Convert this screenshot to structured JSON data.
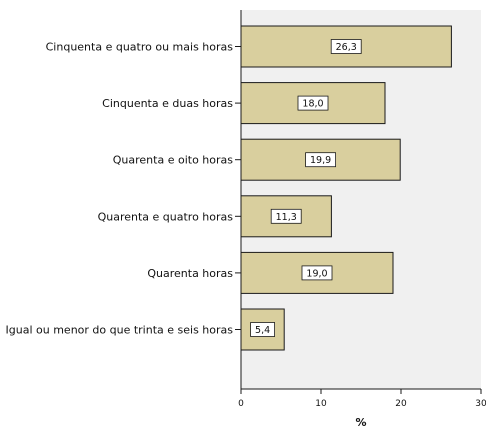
{
  "chart_data": {
    "type": "bar",
    "orientation": "horizontal",
    "categories": [
      "Cinquenta e quatro ou mais horas",
      "Cinquenta e duas horas",
      "Quarenta e oito horas",
      "Quarenta e quatro horas",
      "Quarenta horas",
      "Igual ou menor do que trinta e seis horas"
    ],
    "values": [
      26.3,
      18.0,
      19.9,
      11.3,
      19.0,
      5.4
    ],
    "data_labels": [
      "26,3",
      "18,0",
      "19,9",
      "11,3",
      "19,0",
      "5,4"
    ],
    "xlabel": "%",
    "xlim": [
      0,
      30
    ],
    "xticks": [
      0,
      10,
      20,
      30
    ],
    "xtick_labels": [
      "0",
      "10",
      "20",
      "30"
    ],
    "grid": false,
    "colors": {
      "bar_fill": "#d9cf9e",
      "bar_stroke": "#1a1a1a",
      "plot_background": "#f0f0f0",
      "axis": "#1a1a1a"
    }
  }
}
